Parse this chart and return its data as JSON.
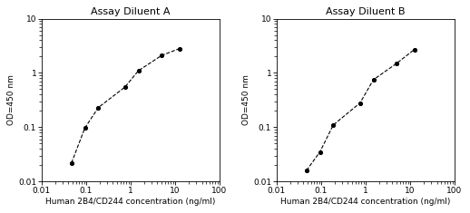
{
  "panel_A": {
    "title": "Assay Diluent A",
    "x": [
      0.047,
      0.094,
      0.188,
      0.75,
      1.5,
      5.0,
      12.5
    ],
    "y": [
      0.022,
      0.097,
      0.23,
      0.55,
      1.1,
      2.1,
      2.8
    ],
    "xlim": [
      0.01,
      100
    ],
    "ylim": [
      0.01,
      10
    ],
    "xlabel": "Human 2B4/CD244 concentration (ng/ml)",
    "ylabel": "OD=450 nm"
  },
  "panel_B": {
    "title": "Assay Diluent B",
    "x": [
      0.047,
      0.094,
      0.188,
      0.75,
      1.5,
      5.0,
      12.5
    ],
    "y": [
      0.016,
      0.035,
      0.11,
      0.28,
      0.75,
      1.5,
      2.7
    ],
    "xlim": [
      0.01,
      100
    ],
    "ylim": [
      0.01,
      10
    ],
    "xlabel": "Human 2B4/CD244 concentration (ng/ml)",
    "ylabel": "OD=450 nm"
  },
  "line_color": "#000000",
  "marker_style": "o",
  "marker_size": 3,
  "marker_facecolor": "#000000",
  "line_style": "--",
  "line_width": 0.8,
  "title_fontsize": 8,
  "label_fontsize": 6.5,
  "tick_fontsize": 6.5,
  "background_color": "#ffffff"
}
